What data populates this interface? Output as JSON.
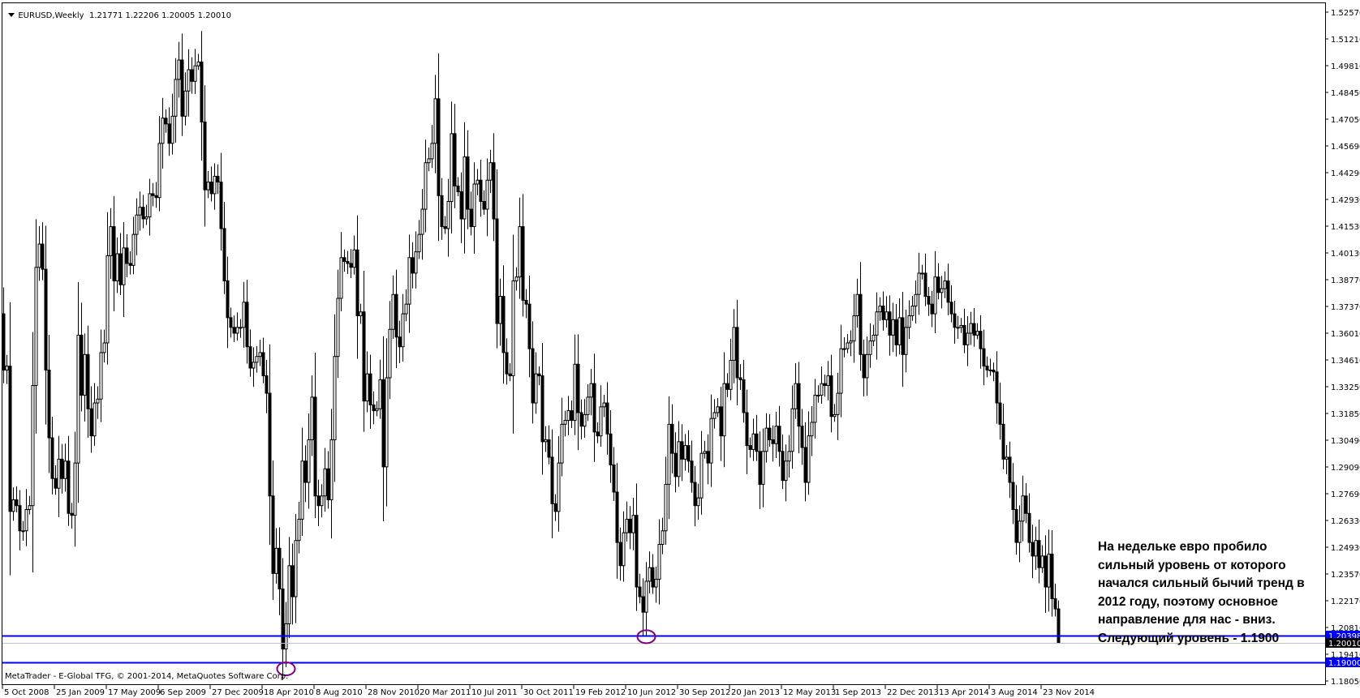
{
  "header": {
    "symbol": "EURUSD,Weekly",
    "open": "1.21771",
    "high": "1.22206",
    "low": "1.20005",
    "close": "1.20010"
  },
  "footer": "MetaTrader - E-Global TFG, © 2001-2014, MetaQuotes Software Corp.",
  "annotation": [
    "На недельке евро пробило",
    "сильный уровень от которого",
    "начался сильный бычий тренд в",
    "2012 году, поэтому основное",
    "направление для нас - вниз.",
    "Следующий уровень - 1.1900"
  ],
  "colors": {
    "background": "#ffffff",
    "candle_bull": "#ffffff",
    "candle_bear": "#000000",
    "level_line": "#0000ff",
    "bid_line": "#c0c0c0",
    "marker_circle": "#800080"
  },
  "chart_data": {
    "type": "candlestick",
    "symbol": "EURUSD",
    "timeframe": "Weekly",
    "first_bar_date": "5 Oct 2008",
    "first_open": 1.37,
    "ylim": [
      1.1805,
      1.5257
    ],
    "y_ticks": [
      "1.52570",
      "1.51210",
      "1.49810",
      "1.48450",
      "1.47050",
      "1.45690",
      "1.44290",
      "1.42930",
      "1.41530",
      "1.40130",
      "1.38770",
      "1.37370",
      "1.36010",
      "1.34610",
      "1.33250",
      "1.31850",
      "1.30490",
      "1.29090",
      "1.27690",
      "1.26330",
      "1.24930",
      "1.23570",
      "1.22170",
      "1.20810",
      "1.19410",
      "1.18050"
    ],
    "x_ticks": [
      "5 Oct 2008",
      "25 Jan 2009",
      "17 May 2009",
      "6 Sep 2009",
      "27 Dec 2009",
      "18 Apr 2010",
      "8 Aug 2010",
      "28 Nov 2010",
      "20 Mar 2011",
      "10 Jul 2011",
      "30 Oct 2011",
      "19 Feb 2012",
      "10 Jun 2012",
      "30 Sep 2012",
      "20 Jan 2013",
      "12 May 2013",
      "1 Sep 2013",
      "22 Dec 2013",
      "13 Apr 2014",
      "3 Aug 2014",
      "23 Nov 2014"
    ],
    "x_tick_every_bars": 16,
    "close": [
      1.341,
      1.343,
      1.268,
      1.274,
      1.271,
      1.258,
      1.258,
      1.269,
      1.271,
      1.333,
      1.394,
      1.406,
      1.393,
      1.341,
      1.306,
      1.285,
      1.28,
      1.295,
      1.285,
      1.294,
      1.267,
      1.266,
      1.293,
      1.359,
      1.328,
      1.349,
      1.321,
      1.307,
      1.324,
      1.326,
      1.35,
      1.355,
      1.4,
      1.415,
      1.387,
      1.401,
      1.385,
      1.404,
      1.396,
      1.395,
      1.411,
      1.421,
      1.425,
      1.419,
      1.42,
      1.432,
      1.431,
      1.43,
      1.458,
      1.471,
      1.468,
      1.458,
      1.472,
      1.491,
      1.501,
      1.472,
      1.485,
      1.496,
      1.49,
      1.498,
      1.5,
      1.469,
      1.434,
      1.438,
      1.432,
      1.441,
      1.438,
      1.414,
      1.387,
      1.368,
      1.363,
      1.36,
      1.363,
      1.363,
      1.376,
      1.353,
      1.342,
      1.345,
      1.348,
      1.35,
      1.338,
      1.329,
      1.276,
      1.236,
      1.249,
      1.228,
      1.197,
      1.21,
      1.24,
      1.224,
      1.253,
      1.264,
      1.294,
      1.283,
      1.305,
      1.327,
      1.276,
      1.271,
      1.276,
      1.29,
      1.274,
      1.305,
      1.348,
      1.378,
      1.399,
      1.397,
      1.396,
      1.394,
      1.403,
      1.369,
      1.371,
      1.325,
      1.339,
      1.323,
      1.32,
      1.321,
      1.336,
      1.291,
      1.337,
      1.362,
      1.38,
      1.358,
      1.353,
      1.37,
      1.375,
      1.399,
      1.391,
      1.402,
      1.411,
      1.424,
      1.448,
      1.45,
      1.458,
      1.481,
      1.431,
      1.415,
      1.414,
      1.428,
      1.463,
      1.436,
      1.433,
      1.419,
      1.451,
      1.424,
      1.415,
      1.437,
      1.439,
      1.428,
      1.424,
      1.439,
      1.448,
      1.419,
      1.365,
      1.379,
      1.35,
      1.339,
      1.338,
      1.387,
      1.389,
      1.415,
      1.377,
      1.375,
      1.352,
      1.324,
      1.339,
      1.338,
      1.304,
      1.305,
      1.296,
      1.272,
      1.268,
      1.293,
      1.313,
      1.315,
      1.32,
      1.315,
      1.344,
      1.319,
      1.312,
      1.318,
      1.327,
      1.334,
      1.309,
      1.307,
      1.322,
      1.324,
      1.308,
      1.292,
      1.278,
      1.252,
      1.24,
      1.257,
      1.264,
      1.257,
      1.266,
      1.229,
      1.224,
      1.216,
      1.232,
      1.239,
      1.229,
      1.233,
      1.251,
      1.258,
      1.282,
      1.313,
      1.298,
      1.286,
      1.304,
      1.295,
      1.302,
      1.294,
      1.283,
      1.271,
      1.275,
      1.298,
      1.299,
      1.293,
      1.316,
      1.319,
      1.322,
      1.307,
      1.334,
      1.331,
      1.346,
      1.363,
      1.337,
      1.336,
      1.319,
      1.302,
      1.3,
      1.308,
      1.299,
      1.282,
      1.299,
      1.311,
      1.305,
      1.303,
      1.312,
      1.299,
      1.284,
      1.294,
      1.299,
      1.321,
      1.334,
      1.312,
      1.301,
      1.283,
      1.307,
      1.314,
      1.328,
      1.328,
      1.334,
      1.333,
      1.338,
      1.317,
      1.318,
      1.329,
      1.352,
      1.352,
      1.355,
      1.356,
      1.369,
      1.38,
      1.349,
      1.337,
      1.349,
      1.356,
      1.359,
      1.371,
      1.374,
      1.367,
      1.371,
      1.359,
      1.367,
      1.354,
      1.368,
      1.349,
      1.363,
      1.369,
      1.374,
      1.38,
      1.391,
      1.391,
      1.379,
      1.375,
      1.37,
      1.389,
      1.381,
      1.383,
      1.387,
      1.376,
      1.37,
      1.363,
      1.363,
      1.364,
      1.354,
      1.36,
      1.365,
      1.359,
      1.361,
      1.352,
      1.343,
      1.341,
      1.341,
      1.34,
      1.324,
      1.313,
      1.295,
      1.296,
      1.283,
      1.269,
      1.252,
      1.263,
      1.276,
      1.267,
      1.252,
      1.245,
      1.253,
      1.239,
      1.245,
      1.229,
      1.246,
      1.223,
      1.2177,
      1.2001
    ],
    "lows_marked": [
      {
        "date": "6 Jun 2010",
        "bar": 87,
        "price": 1.1876
      },
      {
        "date": "22 Jul 2012",
        "bar": 198,
        "price": 1.2042
      }
    ],
    "levels": [
      {
        "price": 1.20398,
        "label": "1.20398",
        "color": "#0000ff"
      },
      {
        "price": 1.19,
        "label": "1.19000",
        "color": "#0000ff"
      },
      {
        "price": 1.2001,
        "label": "1.20010",
        "color": "#c0c0c0",
        "kind": "bid"
      }
    ]
  }
}
